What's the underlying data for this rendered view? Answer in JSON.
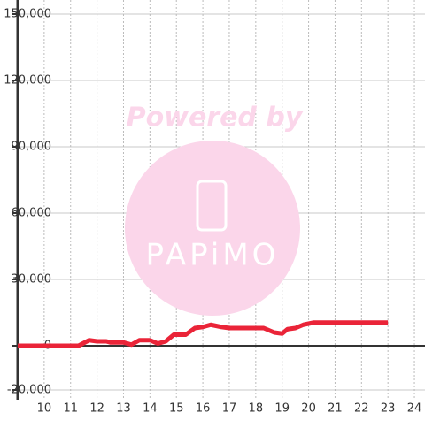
{
  "chart_data": {
    "type": "line",
    "annotations": [
      "Powered by",
      "PAPiMO"
    ],
    "x": [
      9,
      11,
      11.3,
      11.7,
      12,
      12.35,
      12.5,
      13,
      13.3,
      13.6,
      14,
      14.3,
      14.6,
      14.9,
      15.35,
      15.7,
      16,
      16.3,
      16.7,
      17,
      18.3,
      18.7,
      19,
      19.2,
      19.5,
      19.8,
      20.2,
      23
    ],
    "series": [
      {
        "color": "#ea2438",
        "values": [
          0,
          0,
          0,
          2500,
          2000,
          2000,
          1500,
          1500,
          500,
          2500,
          2500,
          1000,
          2000,
          5000,
          5000,
          8000,
          8500,
          9500,
          8500,
          8000,
          8000,
          6000,
          5500,
          7500,
          8000,
          9500,
          10500,
          10500
        ]
      }
    ],
    "xlim": [
      9,
      24.4
    ],
    "xticks": [
      10,
      11,
      12,
      13,
      14,
      15,
      16,
      17,
      18,
      19,
      20,
      21,
      22,
      23,
      24
    ],
    "ylim": [
      -20000,
      150000
    ],
    "yticks": [
      {
        "value": -20000,
        "label": "-20,000"
      },
      0,
      {
        "value": 30000,
        "label": "30,000"
      },
      {
        "value": 60000,
        "label": "60,000"
      },
      {
        "value": 90000,
        "label": "90,000"
      },
      {
        "value": 120000,
        "label": "120,000"
      },
      {
        "value": 150000,
        "label": "150,000"
      }
    ],
    "grid": true
  }
}
